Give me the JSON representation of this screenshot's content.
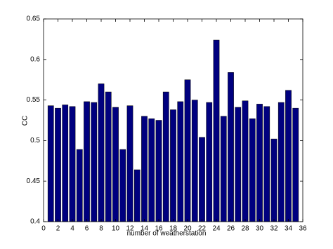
{
  "chart_data": {
    "type": "bar",
    "x": [
      1,
      2,
      3,
      4,
      5,
      6,
      7,
      8,
      9,
      10,
      11,
      12,
      13,
      14,
      15,
      16,
      17,
      18,
      19,
      20,
      21,
      22,
      23,
      24,
      25,
      26,
      27,
      28,
      29,
      30,
      31,
      32,
      33,
      34,
      35
    ],
    "values": [
      0.543,
      0.54,
      0.544,
      0.542,
      0.489,
      0.548,
      0.547,
      0.57,
      0.56,
      0.541,
      0.489,
      0.543,
      0.464,
      0.53,
      0.527,
      0.525,
      0.56,
      0.538,
      0.548,
      0.575,
      0.55,
      0.504,
      0.547,
      0.624,
      0.53,
      0.584,
      0.541,
      0.549,
      0.527,
      0.545,
      0.542,
      0.502,
      0.547,
      0.562,
      0.54
    ],
    "color": "#00007f",
    "xlabel": "number of weatherstation",
    "ylabel": "CC",
    "xlim": [
      0,
      36
    ],
    "xticks": [
      0,
      2,
      4,
      6,
      8,
      10,
      12,
      14,
      16,
      18,
      20,
      22,
      24,
      26,
      28,
      30,
      32,
      34,
      36
    ],
    "ylim": [
      0.4,
      0.65
    ],
    "yticks": [
      0.4,
      0.45,
      0.5,
      0.55,
      0.6,
      0.65
    ],
    "grid": false
  }
}
